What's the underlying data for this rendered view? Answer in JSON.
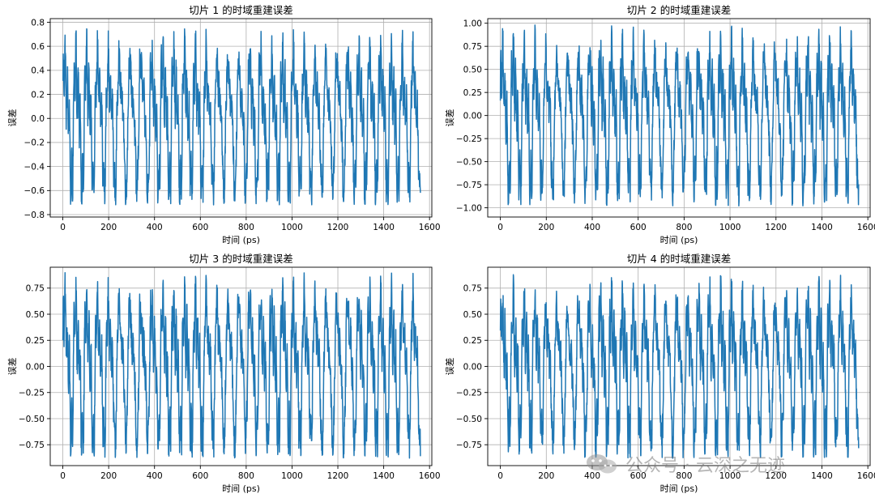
{
  "watermark": {
    "text": "公众号 · 云深之无迹"
  },
  "chart_data": [
    {
      "type": "line",
      "title": "切片 1 的时域重建误差",
      "xlabel": "时间 (ps)",
      "ylabel": "误差",
      "xlim": [
        -55,
        1610
      ],
      "ylim": [
        -0.82,
        0.83
      ],
      "xticks": [
        0,
        200,
        400,
        600,
        800,
        1000,
        1200,
        1400,
        1600
      ],
      "yticks": [
        -0.8,
        -0.6,
        -0.4,
        -0.2,
        0.0,
        0.2,
        0.4,
        0.6,
        0.8
      ],
      "ytick_labels": [
        "−0.8",
        "−0.6",
        "−0.4",
        "−0.2",
        "0.0",
        "0.2",
        "0.4",
        "0.6",
        "0.8"
      ],
      "grid": true,
      "series": [
        {
          "name": "误差",
          "x_range": [
            0,
            1560
          ],
          "approx_period_ps": 47.5,
          "approx_min": -0.72,
          "approx_max": 0.75
        }
      ]
    },
    {
      "type": "line",
      "title": "切片 2 的时域重建误差",
      "xlabel": "时间 (ps)",
      "ylabel": "误差",
      "xlim": [
        -55,
        1610
      ],
      "ylim": [
        -1.1,
        1.05
      ],
      "xticks": [
        0,
        200,
        400,
        600,
        800,
        1000,
        1200,
        1400,
        1600
      ],
      "yticks": [
        -1.0,
        -0.75,
        -0.5,
        -0.25,
        0.0,
        0.25,
        0.5,
        0.75,
        1.0
      ],
      "ytick_labels": [
        "−1.00",
        "−0.75",
        "−0.50",
        "−0.25",
        "0.00",
        "0.25",
        "0.50",
        "0.75",
        "1.00"
      ],
      "grid": true,
      "series": [
        {
          "name": "误差",
          "x_range": [
            0,
            1560
          ],
          "approx_period_ps": 47.5,
          "approx_min": -0.98,
          "approx_max": 0.98
        }
      ]
    },
    {
      "type": "line",
      "title": "切片 3 的时域重建误差",
      "xlabel": "时间 (ps)",
      "ylabel": "误差",
      "xlim": [
        -55,
        1610
      ],
      "ylim": [
        -0.95,
        0.95
      ],
      "xticks": [
        0,
        200,
        400,
        600,
        800,
        1000,
        1200,
        1400,
        1600
      ],
      "yticks": [
        -0.75,
        -0.5,
        -0.25,
        0.0,
        0.25,
        0.5,
        0.75
      ],
      "ytick_labels": [
        "−0.75",
        "−0.50",
        "−0.25",
        "0.00",
        "0.25",
        "0.50",
        "0.75"
      ],
      "grid": true,
      "series": [
        {
          "name": "误差",
          "x_range": [
            0,
            1560
          ],
          "approx_period_ps": 47.5,
          "approx_min": -0.88,
          "approx_max": 0.9
        }
      ]
    },
    {
      "type": "line",
      "title": "切片 4 的时域重建误差",
      "xlabel": "时间 (ps)",
      "ylabel": "误差",
      "xlim": [
        -55,
        1610
      ],
      "ylim": [
        -0.95,
        0.95
      ],
      "xticks": [
        0,
        200,
        400,
        600,
        800,
        1000,
        1200,
        1400,
        1600
      ],
      "yticks": [
        -0.75,
        -0.5,
        -0.25,
        0.0,
        0.25,
        0.5,
        0.75
      ],
      "ytick_labels": [
        "−0.75",
        "−0.50",
        "−0.25",
        "0.00",
        "0.25",
        "0.50",
        "0.75"
      ],
      "grid": true,
      "series": [
        {
          "name": "误差",
          "x_range": [
            0,
            1560
          ],
          "approx_period_ps": 47.5,
          "approx_min": -0.88,
          "approx_max": 0.88
        }
      ]
    }
  ]
}
